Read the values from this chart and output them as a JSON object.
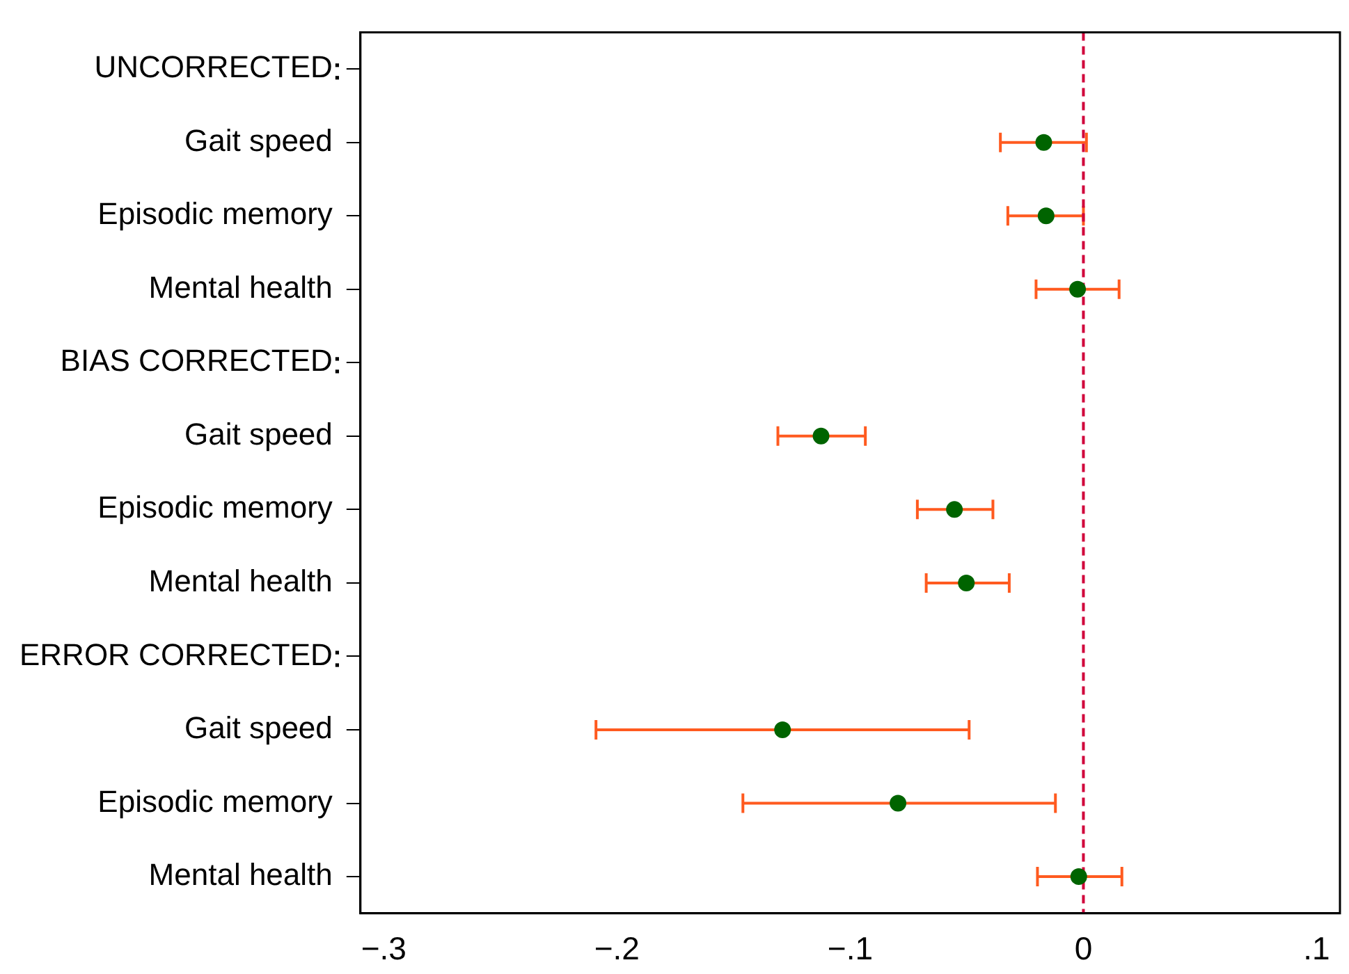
{
  "chart_data": {
    "type": "scatter",
    "orientation": "horizontal",
    "categories": [
      "UNCORRECTED",
      "Gait speed",
      "Episodic memory",
      "Mental health",
      "BIAS CORRECTED",
      "Gait speed",
      "Episodic memory",
      "Mental health",
      "ERROR CORRECTED",
      "Gait speed",
      "Episodic memory",
      "Mental health"
    ],
    "series": [
      {
        "color": "#006400",
        "values": [
          null,
          -0.017,
          -0.016,
          -0.0025,
          null,
          -0.1125,
          -0.0553,
          -0.0502,
          null,
          -0.129,
          -0.0795,
          -0.002
        ],
        "errors": [
          null,
          [
            -0.0356,
            0.0013
          ],
          [
            -0.0324,
            0.0
          ],
          [
            -0.0203,
            0.0153
          ],
          null,
          [
            -0.131,
            -0.0935
          ],
          [
            -0.0712,
            -0.0388
          ],
          [
            -0.0674,
            -0.0318
          ],
          null,
          [
            -0.209,
            -0.049
          ],
          [
            -0.146,
            -0.012
          ],
          [
            -0.0197,
            0.0165
          ]
        ]
      }
    ],
    "xlim": [
      -0.31,
      0.11
    ],
    "xticks": [
      {
        "value": -0.3,
        "label": "−.3"
      },
      {
        "value": -0.2,
        "label": "−.2"
      },
      {
        "value": -0.1,
        "label": "−.1"
      },
      0,
      {
        "value": 0.1,
        "label": ".1"
      }
    ],
    "ref_lines": [
      {
        "axis": "x",
        "value": 0,
        "color": "#d0003a",
        "line_style": "dashed"
      }
    ],
    "marker": "circle",
    "grid": false,
    "legend": false
  }
}
